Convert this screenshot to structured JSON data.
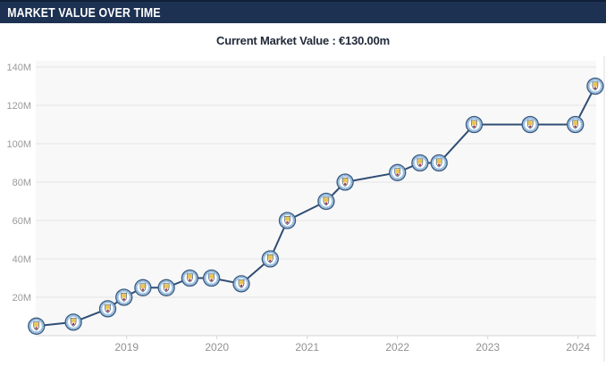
{
  "header": {
    "title": "MARKET VALUE OVER TIME"
  },
  "subtitle": {
    "text": "Current Market Value : €130.00m"
  },
  "chart_data": {
    "type": "line",
    "title": "Market Value Over Time",
    "unit": "€ million",
    "current_value": "€130.00m",
    "line_color": "#2f4d75",
    "plot_bg": "#f8f8f8",
    "grid": true,
    "marker": "manchester-city-club-badge",
    "xlim": [
      2018.0,
      2024.3
    ],
    "ylim": [
      0,
      145
    ],
    "y_ticks": [
      {
        "label": "20M",
        "value": 20
      },
      {
        "label": "40M",
        "value": 40
      },
      {
        "label": "60M",
        "value": 60
      },
      {
        "label": "80M",
        "value": 80
      },
      {
        "label": "100M",
        "value": 100
      },
      {
        "label": "120M",
        "value": 120
      },
      {
        "label": "140M",
        "value": 140
      }
    ],
    "x_ticks": [
      {
        "label": "2019",
        "year": 2019
      },
      {
        "label": "2020",
        "year": 2020
      },
      {
        "label": "2021",
        "year": 2021
      },
      {
        "label": "2022",
        "year": 2022
      },
      {
        "label": "2023",
        "year": 2023
      },
      {
        "label": "2024",
        "year": 2024
      }
    ],
    "points": [
      {
        "x": 2018.0,
        "value": 5
      },
      {
        "x": 2018.41,
        "value": 7
      },
      {
        "x": 2018.79,
        "value": 14
      },
      {
        "x": 2018.97,
        "value": 20
      },
      {
        "x": 2019.18,
        "value": 25
      },
      {
        "x": 2019.44,
        "value": 25
      },
      {
        "x": 2019.7,
        "value": 30
      },
      {
        "x": 2019.94,
        "value": 30
      },
      {
        "x": 2020.27,
        "value": 27
      },
      {
        "x": 2020.59,
        "value": 40
      },
      {
        "x": 2020.78,
        "value": 60
      },
      {
        "x": 2021.21,
        "value": 70
      },
      {
        "x": 2021.42,
        "value": 80
      },
      {
        "x": 2022.0,
        "value": 85
      },
      {
        "x": 2022.25,
        "value": 90
      },
      {
        "x": 2022.46,
        "value": 90
      },
      {
        "x": 2022.85,
        "value": 110
      },
      {
        "x": 2023.47,
        "value": 110
      },
      {
        "x": 2023.97,
        "value": 110
      },
      {
        "x": 2024.19,
        "value": 130
      }
    ]
  },
  "colors": {
    "header_bg": "#1d3152",
    "header_text": "#ffffff",
    "subtitle_text": "#222b3a",
    "gridline": "#e5e5e5",
    "axis_line": "#d5d5d5",
    "tick_label": "#9a9a9a",
    "badge_blue": "#a9cbe7",
    "badge_ring": "#ffffff",
    "badge_outline": "#3a5a82",
    "badge_gold": "#edc455",
    "badge_red": "#a8323e"
  }
}
